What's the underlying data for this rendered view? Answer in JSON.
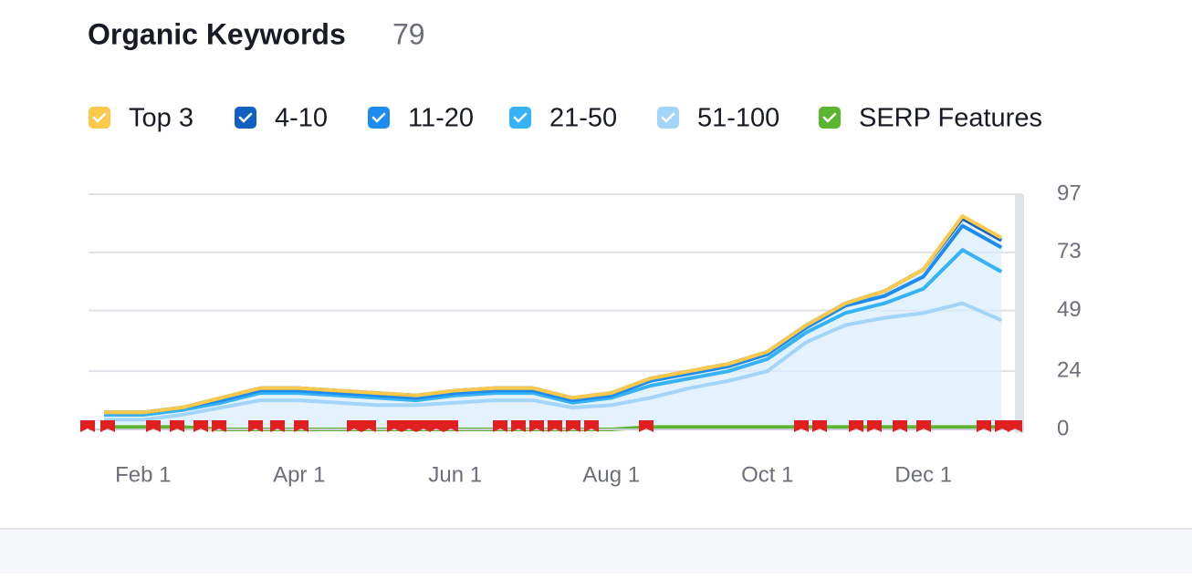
{
  "chart_data": {
    "type": "stacked-line",
    "title": "Organic Keywords",
    "total": "79",
    "categories": [
      null,
      "Feb 1",
      null,
      null,
      null,
      "Apr 1",
      null,
      null,
      null,
      "Jun 1",
      null,
      null,
      null,
      "Aug 1",
      null,
      null,
      null,
      "Oct 1",
      null,
      null,
      null,
      "Dec 1",
      null,
      null
    ],
    "series": [
      {
        "name": "Top 3",
        "color": "#fcc94a",
        "stacked": true,
        "values": [
          0,
          0,
          0,
          0,
          0,
          0,
          0,
          0,
          0,
          0,
          0,
          0,
          0,
          0,
          0,
          0,
          0,
          0,
          0,
          0,
          0,
          0,
          1,
          1
        ]
      },
      {
        "name": "4-10",
        "color": "#1161c2",
        "stacked": true,
        "values": [
          0,
          0,
          0,
          1,
          1,
          1,
          1,
          1,
          1,
          1,
          1,
          1,
          1,
          1,
          1,
          1,
          1,
          1,
          1,
          1,
          2,
          3,
          3,
          3
        ]
      },
      {
        "name": "11-20",
        "color": "#1d8cf0",
        "stacked": true,
        "values": [
          1,
          1,
          1,
          1,
          1,
          1,
          1,
          1,
          1,
          1,
          1,
          1,
          1,
          1,
          2,
          2,
          2,
          2,
          2,
          3,
          3,
          5,
          10,
          10
        ]
      },
      {
        "name": "21-50",
        "color": "#36b2f6",
        "stacked": true,
        "values": [
          2,
          2,
          2,
          2,
          3,
          3,
          3,
          3,
          2,
          3,
          3,
          3,
          2,
          3,
          5,
          4,
          4,
          5,
          4,
          5,
          6,
          10,
          22,
          20
        ]
      },
      {
        "name": "51-100",
        "color": "#a3d5fb",
        "stacked": true,
        "values": [
          4,
          4,
          6,
          9,
          12,
          12,
          11,
          10,
          10,
          11,
          12,
          12,
          9,
          10,
          13,
          17,
          20,
          24,
          36,
          43,
          46,
          48,
          52,
          45
        ]
      },
      {
        "name": "SERP Features",
        "color": "#5ab52f",
        "stacked": false,
        "values": [
          1,
          1,
          1,
          0,
          0,
          0,
          0,
          0,
          0,
          0,
          0,
          0,
          0,
          0,
          1,
          1,
          1,
          1,
          1,
          1,
          1,
          1,
          1,
          1
        ]
      }
    ],
    "ylim": [
      0,
      97
    ],
    "yticks": [
      0,
      24,
      49,
      73,
      97
    ],
    "grid": true
  }
}
